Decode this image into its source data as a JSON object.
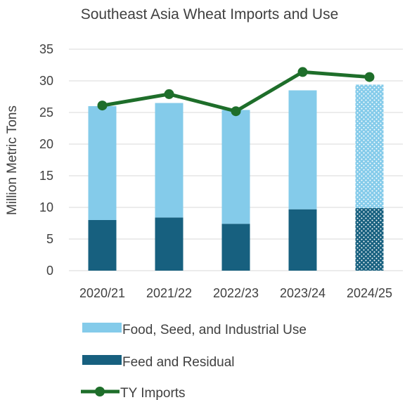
{
  "chart_data": {
    "type": "bar",
    "title": "Southeast Asia Wheat Imports and Use",
    "xlabel": "",
    "ylabel": "Million Metric Tons",
    "ylim": [
      0,
      35
    ],
    "yticks": [
      0,
      5,
      10,
      15,
      20,
      25,
      30,
      35
    ],
    "categories": [
      "2020/21",
      "2021/22",
      "2022/23",
      "2023/24",
      "2024/25"
    ],
    "stacked": true,
    "grid": true,
    "legend_position": "bottom",
    "series": [
      {
        "name": "Feed and Residual",
        "kind": "bar",
        "color": "#17607f",
        "values": [
          8.0,
          8.4,
          7.4,
          9.7,
          9.9
        ],
        "patterned": [
          false,
          false,
          false,
          false,
          true
        ]
      },
      {
        "name": "Food, Seed, and Industrial Use",
        "kind": "bar",
        "color": "#84cbea",
        "values": [
          18.0,
          18.1,
          18.0,
          18.8,
          19.5
        ],
        "patterned": [
          false,
          false,
          false,
          false,
          true
        ]
      },
      {
        "name": "TY Imports",
        "kind": "line",
        "color": "#1e6e2a",
        "values": [
          26.1,
          27.9,
          25.2,
          31.4,
          30.6
        ]
      }
    ],
    "legend_order": [
      "Food, Seed, and Industrial Use",
      "Feed and Residual",
      "TY Imports"
    ]
  }
}
